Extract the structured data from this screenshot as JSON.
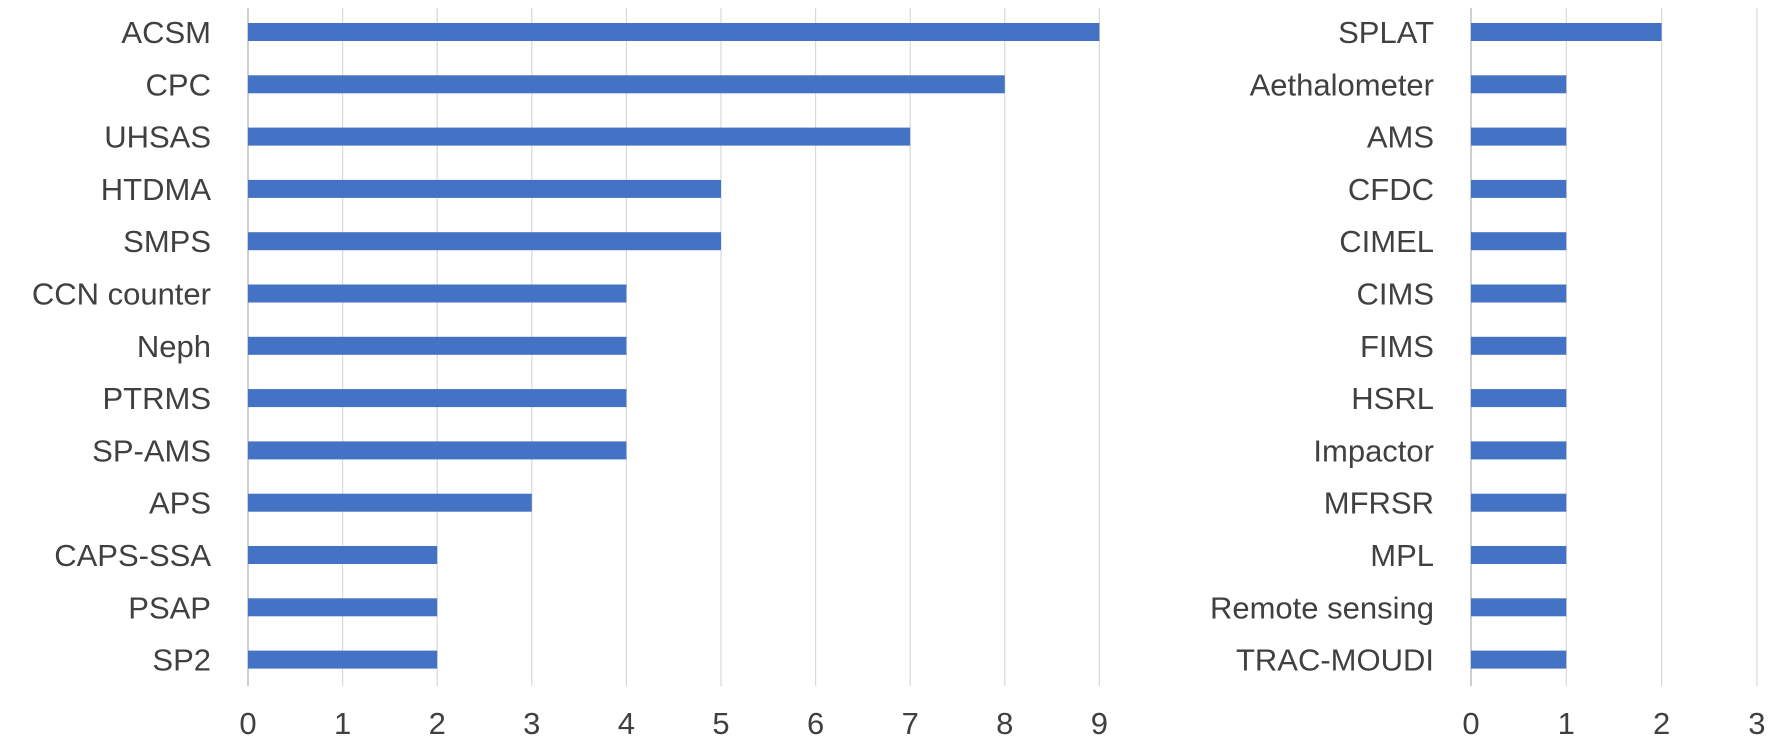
{
  "chart_data": [
    {
      "type": "bar",
      "orientation": "horizontal",
      "categories": [
        "ACSM",
        "CPC",
        "UHSAS",
        "HTDMA",
        "SMPS",
        "CCN counter",
        "Neph",
        "PTRMS",
        "SP-AMS",
        "APS",
        "CAPS-SSA",
        "PSAP",
        "SP2"
      ],
      "values": [
        9,
        8,
        7,
        5,
        5,
        4,
        4,
        4,
        4,
        3,
        2,
        2,
        2
      ],
      "xlim": [
        0,
        9
      ],
      "x_ticks": [
        "0",
        "1",
        "2",
        "3",
        "4",
        "5",
        "6",
        "7",
        "8",
        "9"
      ],
      "grid": true,
      "color": "#4472c4"
    },
    {
      "type": "bar",
      "orientation": "horizontal",
      "categories": [
        "SPLAT",
        "Aethalometer",
        "AMS",
        "CFDC",
        "CIMEL",
        "CIMS",
        "FIMS",
        "HSRL",
        "Impactor",
        "MFRSR",
        "MPL",
        "Remote sensing",
        "TRAC-MOUDI"
      ],
      "values": [
        2,
        1,
        1,
        1,
        1,
        1,
        1,
        1,
        1,
        1,
        1,
        1,
        1
      ],
      "xlim": [
        0,
        3
      ],
      "x_ticks": [
        "0",
        "1",
        "2",
        "3"
      ],
      "grid": true,
      "color": "#4472c4"
    }
  ]
}
